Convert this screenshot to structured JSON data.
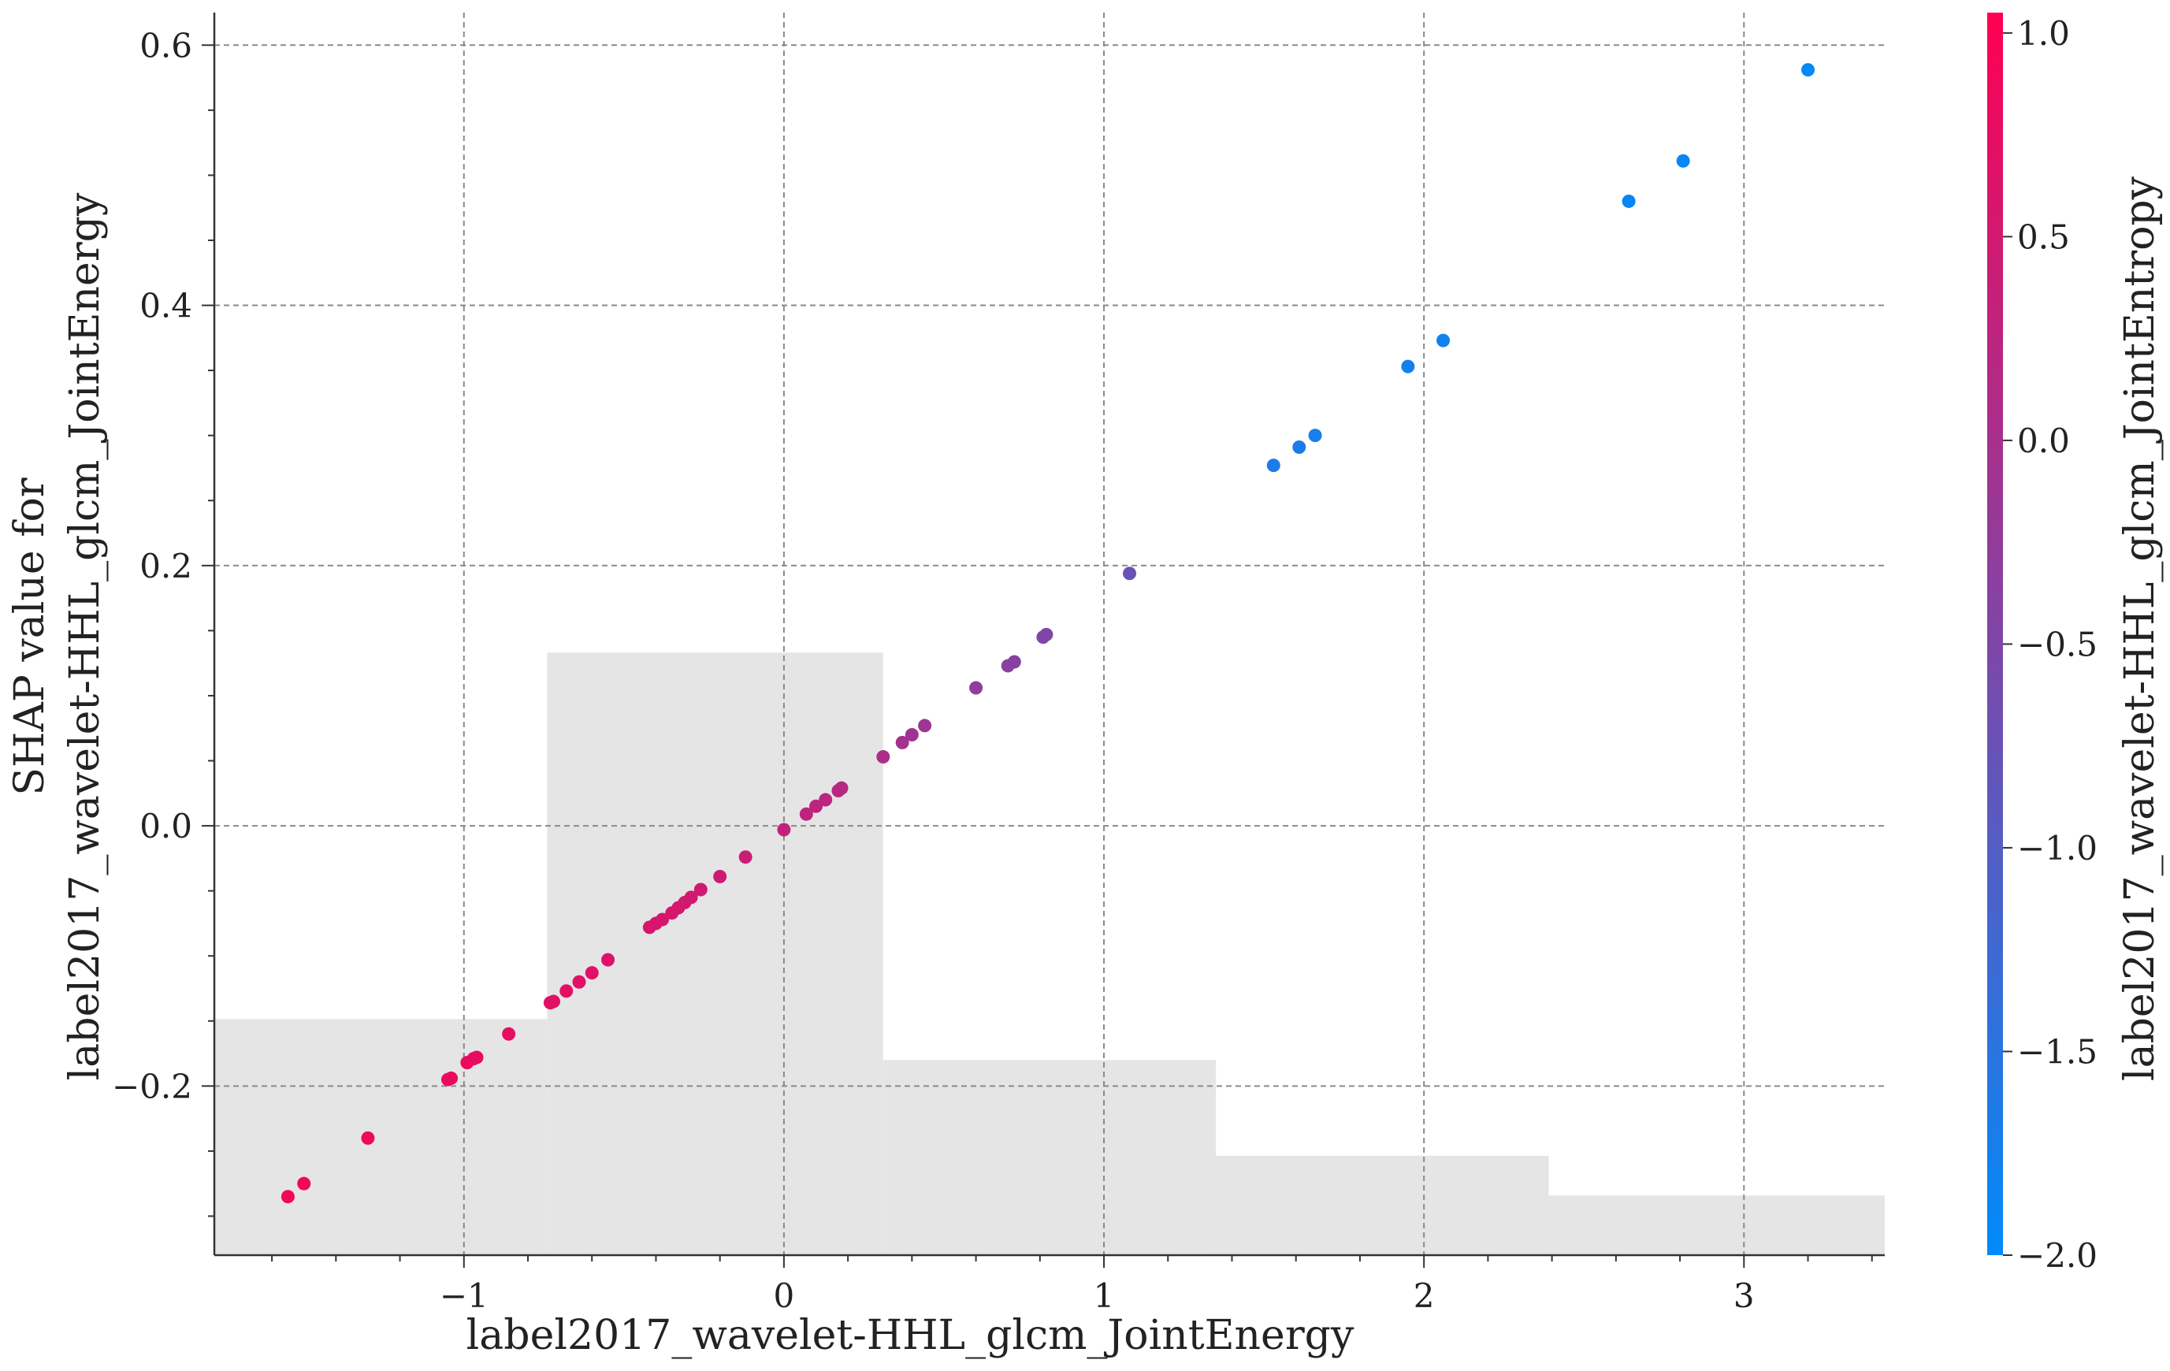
{
  "chart_data": {
    "type": "scatter",
    "title": "",
    "xlabel": "label2017_wavelet-HHL_glcm_JointEnergy",
    "ylabel_lines": [
      "SHAP value for",
      "label2017_wavelet-HHL_glcm_JointEnergy"
    ],
    "xlim": [
      -1.78,
      3.44
    ],
    "ylim": [
      -0.33,
      0.625
    ],
    "x_ticks": [
      -1,
      0,
      1,
      2,
      3
    ],
    "x_tick_labels": [
      "−1",
      "0",
      "1",
      "2",
      "3"
    ],
    "y_ticks": [
      -0.2,
      0.0,
      0.2,
      0.4,
      0.6
    ],
    "y_tick_labels": [
      "−0.2",
      "0.0",
      "0.2",
      "0.4",
      "0.6"
    ],
    "grid": true,
    "colorbar": {
      "label": "label2017_wavelet-HHL_glcm_JointEntropy",
      "range": [
        -2.0,
        1.05
      ],
      "ticks": [
        1.0,
        0.5,
        0.0,
        -0.5,
        -1.0,
        -1.5,
        -2.0
      ],
      "tick_labels": [
        "1.0",
        "0.5",
        "0.0",
        "−0.5",
        "−1.0",
        "−1.5",
        "−2.0"
      ],
      "colormap": [
        "#008bfb",
        "#ff0052"
      ]
    },
    "histogram_background": {
      "color": "#e5e5e5",
      "bins": [
        {
          "x0": -1.78,
          "x1": -0.74,
          "height": 0.19
        },
        {
          "x0": -0.74,
          "x1": 0.31,
          "height": 0.485
        },
        {
          "x0": 0.31,
          "x1": 1.35,
          "height": 0.157
        },
        {
          "x0": 1.35,
          "x1": 2.39,
          "height": 0.08
        },
        {
          "x0": 2.39,
          "x1": 3.44,
          "height": 0.048
        }
      ]
    },
    "points": [
      {
        "x": -1.55,
        "y": -0.285,
        "c": 0.9
      },
      {
        "x": -1.5,
        "y": -0.275,
        "c": 0.88
      },
      {
        "x": -1.3,
        "y": -0.24,
        "c": 0.85
      },
      {
        "x": -1.05,
        "y": -0.195,
        "c": 0.82
      },
      {
        "x": -1.04,
        "y": -0.194,
        "c": 0.8
      },
      {
        "x": -0.99,
        "y": -0.182,
        "c": 0.8
      },
      {
        "x": -0.97,
        "y": -0.179,
        "c": 0.78
      },
      {
        "x": -0.96,
        "y": -0.178,
        "c": 0.78
      },
      {
        "x": -0.86,
        "y": -0.16,
        "c": 0.75
      },
      {
        "x": -0.73,
        "y": -0.136,
        "c": 0.72
      },
      {
        "x": -0.72,
        "y": -0.135,
        "c": 0.7
      },
      {
        "x": -0.68,
        "y": -0.127,
        "c": 0.7
      },
      {
        "x": -0.64,
        "y": -0.12,
        "c": 0.68
      },
      {
        "x": -0.6,
        "y": -0.113,
        "c": 0.68
      },
      {
        "x": -0.55,
        "y": -0.103,
        "c": 0.65
      },
      {
        "x": -0.42,
        "y": -0.078,
        "c": 0.6
      },
      {
        "x": -0.4,
        "y": -0.075,
        "c": 0.58
      },
      {
        "x": -0.38,
        "y": -0.072,
        "c": 0.58
      },
      {
        "x": -0.35,
        "y": -0.067,
        "c": 0.55
      },
      {
        "x": -0.33,
        "y": -0.063,
        "c": 0.55
      },
      {
        "x": -0.31,
        "y": -0.059,
        "c": 0.52
      },
      {
        "x": -0.29,
        "y": -0.055,
        "c": 0.5
      },
      {
        "x": -0.26,
        "y": -0.049,
        "c": 0.5
      },
      {
        "x": -0.2,
        "y": -0.039,
        "c": 0.45
      },
      {
        "x": -0.12,
        "y": -0.024,
        "c": 0.4
      },
      {
        "x": 0.0,
        "y": -0.003,
        "c": 0.32
      },
      {
        "x": 0.07,
        "y": 0.009,
        "c": 0.28
      },
      {
        "x": 0.1,
        "y": 0.015,
        "c": 0.25
      },
      {
        "x": 0.13,
        "y": 0.02,
        "c": 0.22
      },
      {
        "x": 0.17,
        "y": 0.027,
        "c": 0.2
      },
      {
        "x": 0.18,
        "y": 0.029,
        "c": 0.18
      },
      {
        "x": 0.31,
        "y": 0.053,
        "c": 0.05
      },
      {
        "x": 0.37,
        "y": 0.064,
        "c": -0.05
      },
      {
        "x": 0.4,
        "y": 0.07,
        "c": -0.08
      },
      {
        "x": 0.44,
        "y": 0.077,
        "c": -0.12
      },
      {
        "x": 0.6,
        "y": 0.106,
        "c": -0.28
      },
      {
        "x": 0.7,
        "y": 0.123,
        "c": -0.35
      },
      {
        "x": 0.72,
        "y": 0.126,
        "c": -0.38
      },
      {
        "x": 0.81,
        "y": 0.145,
        "c": -0.45
      },
      {
        "x": 0.82,
        "y": 0.147,
        "c": -0.46
      },
      {
        "x": 1.08,
        "y": 0.194,
        "c": -0.75
      },
      {
        "x": 1.53,
        "y": 0.277,
        "c": -1.65
      },
      {
        "x": 1.61,
        "y": 0.291,
        "c": -1.68
      },
      {
        "x": 1.66,
        "y": 0.3,
        "c": -1.7
      },
      {
        "x": 1.95,
        "y": 0.353,
        "c": -1.75
      },
      {
        "x": 2.06,
        "y": 0.373,
        "c": -1.78
      },
      {
        "x": 2.64,
        "y": 0.48,
        "c": -1.9
      },
      {
        "x": 2.81,
        "y": 0.511,
        "c": -1.92
      },
      {
        "x": 3.2,
        "y": 0.581,
        "c": -1.98
      }
    ]
  }
}
